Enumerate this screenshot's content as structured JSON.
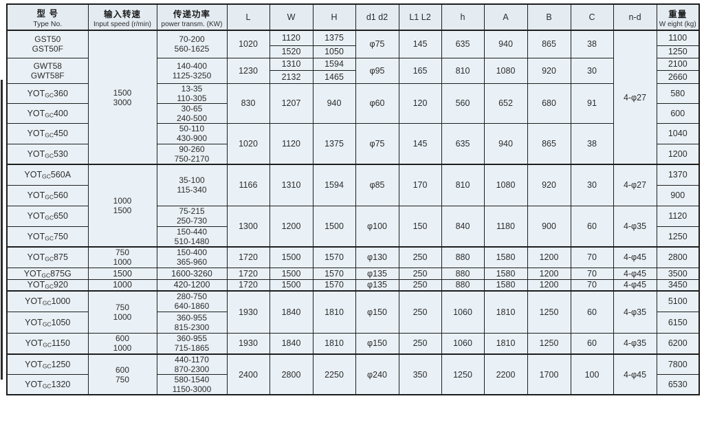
{
  "table": {
    "headers": [
      {
        "zh": "型 号",
        "en": "Type No."
      },
      {
        "zh": "输入转速",
        "en": "Input speed (r/min)"
      },
      {
        "zh": "传递功率",
        "en": "power transm. (KW)"
      },
      {
        "en": "L"
      },
      {
        "en": "W"
      },
      {
        "en": "H"
      },
      {
        "en": "d1 d2"
      },
      {
        "en": "L1 L2"
      },
      {
        "en": "h"
      },
      {
        "en": "A"
      },
      {
        "en": "B"
      },
      {
        "en": "C"
      },
      {
        "en": "n-d"
      },
      {
        "zh": "重量",
        "en": "W eight (kg)"
      }
    ],
    "rows": [
      {
        "cells": [
          {
            "c": 0,
            "rs": 2,
            "ln": [
              "GST50",
              "GST50F"
            ]
          },
          {
            "c": 1,
            "rs": 8,
            "ln": [
              "1500",
              "3000"
            ]
          },
          {
            "c": 2,
            "rs": 2,
            "ln": [
              "70-200",
              "560-1625"
            ]
          },
          {
            "c": 3,
            "rs": 2,
            "t": "1020"
          },
          {
            "c": 4,
            "t": "1120"
          },
          {
            "c": 5,
            "t": "1375"
          },
          {
            "c": 6,
            "rs": 2,
            "t": "φ75"
          },
          {
            "c": 7,
            "rs": 2,
            "t": "145"
          },
          {
            "c": 8,
            "rs": 2,
            "t": "635"
          },
          {
            "c": 9,
            "rs": 2,
            "t": "940"
          },
          {
            "c": 10,
            "rs": 2,
            "t": "865"
          },
          {
            "c": 11,
            "rs": 2,
            "t": "38"
          },
          {
            "c": 12,
            "rs": 8,
            "t": "4-φ27"
          },
          {
            "c": 13,
            "t": "1100"
          }
        ]
      },
      {
        "cells": [
          {
            "c": 4,
            "t": "1520"
          },
          {
            "c": 5,
            "t": "1050"
          },
          {
            "c": 13,
            "t": "1250"
          }
        ]
      },
      {
        "cells": [
          {
            "c": 0,
            "rs": 2,
            "ln": [
              "GWT58",
              "GWT58F"
            ]
          },
          {
            "c": 2,
            "rs": 2,
            "ln": [
              "140-400",
              "1125-3250"
            ]
          },
          {
            "c": 3,
            "rs": 2,
            "t": "1230"
          },
          {
            "c": 4,
            "t": "1310"
          },
          {
            "c": 5,
            "t": "1594"
          },
          {
            "c": 6,
            "rs": 2,
            "t": "φ95"
          },
          {
            "c": 7,
            "rs": 2,
            "t": "165"
          },
          {
            "c": 8,
            "rs": 2,
            "t": "810"
          },
          {
            "c": 9,
            "rs": 2,
            "t": "1080"
          },
          {
            "c": 10,
            "rs": 2,
            "t": "920"
          },
          {
            "c": 11,
            "rs": 2,
            "t": "30"
          },
          {
            "c": 13,
            "t": "2100"
          }
        ]
      },
      {
        "cells": [
          {
            "c": 4,
            "t": "2132"
          },
          {
            "c": 5,
            "t": "1465"
          },
          {
            "c": 13,
            "t": "2660"
          }
        ]
      },
      {
        "cells": [
          {
            "c": 0,
            "m": [
              "YOT",
              "GC",
              "360"
            ]
          },
          {
            "c": 2,
            "ln": [
              "13-35",
              "110-305"
            ]
          },
          {
            "c": 3,
            "rs": 2,
            "t": "830"
          },
          {
            "c": 4,
            "rs": 2,
            "t": "1207"
          },
          {
            "c": 5,
            "rs": 2,
            "t": "940"
          },
          {
            "c": 6,
            "rs": 2,
            "t": "φ60"
          },
          {
            "c": 7,
            "rs": 2,
            "t": "120"
          },
          {
            "c": 8,
            "rs": 2,
            "t": "560"
          },
          {
            "c": 9,
            "rs": 2,
            "t": "652"
          },
          {
            "c": 10,
            "rs": 2,
            "t": "680"
          },
          {
            "c": 11,
            "rs": 2,
            "t": "91"
          },
          {
            "c": 13,
            "t": "580"
          }
        ]
      },
      {
        "cells": [
          {
            "c": 0,
            "m": [
              "YOT",
              "GC",
              "400"
            ]
          },
          {
            "c": 2,
            "ln": [
              "30-65",
              "240-500"
            ]
          },
          {
            "c": 13,
            "t": "600"
          }
        ]
      },
      {
        "cells": [
          {
            "c": 0,
            "m": [
              "YOT",
              "GC",
              "450"
            ]
          },
          {
            "c": 2,
            "ln": [
              "50-110",
              "430-900"
            ]
          },
          {
            "c": 3,
            "rs": 2,
            "t": "1020"
          },
          {
            "c": 4,
            "rs": 2,
            "t": "1120"
          },
          {
            "c": 5,
            "rs": 2,
            "t": "1375"
          },
          {
            "c": 6,
            "rs": 2,
            "t": "φ75"
          },
          {
            "c": 7,
            "rs": 2,
            "t": "145"
          },
          {
            "c": 8,
            "rs": 2,
            "t": "635"
          },
          {
            "c": 9,
            "rs": 2,
            "t": "940"
          },
          {
            "c": 10,
            "rs": 2,
            "t": "865"
          },
          {
            "c": 11,
            "rs": 2,
            "t": "38"
          },
          {
            "c": 13,
            "t": "1040"
          }
        ]
      },
      {
        "cells": [
          {
            "c": 0,
            "m": [
              "YOT",
              "GC",
              "530"
            ]
          },
          {
            "c": 2,
            "ln": [
              "90-260",
              "750-2170"
            ]
          },
          {
            "c": 13,
            "t": "1200"
          }
        ]
      },
      {
        "cells": [
          {
            "c": 0,
            "m": [
              "YOT",
              "GC",
              "560A"
            ]
          },
          {
            "c": 1,
            "rs": 4,
            "ln": [
              "1000",
              "1500"
            ]
          },
          {
            "c": 2,
            "rs": 2,
            "ln": [
              "35-100",
              "115-340"
            ]
          },
          {
            "c": 3,
            "rs": 2,
            "t": "1166"
          },
          {
            "c": 4,
            "rs": 2,
            "t": "1310"
          },
          {
            "c": 5,
            "rs": 2,
            "t": "1594"
          },
          {
            "c": 6,
            "rs": 2,
            "t": "φ85"
          },
          {
            "c": 7,
            "rs": 2,
            "t": "170"
          },
          {
            "c": 8,
            "rs": 2,
            "t": "810"
          },
          {
            "c": 9,
            "rs": 2,
            "t": "1080"
          },
          {
            "c": 10,
            "rs": 2,
            "t": "920"
          },
          {
            "c": 11,
            "rs": 2,
            "t": "30"
          },
          {
            "c": 12,
            "rs": 2,
            "t": "4-φ27"
          },
          {
            "c": 13,
            "t": "1370"
          }
        ]
      },
      {
        "cells": [
          {
            "c": 0,
            "m": [
              "YOT",
              "GC",
              "560"
            ]
          },
          {
            "c": 13,
            "t": "900"
          }
        ]
      },
      {
        "cells": [
          {
            "c": 0,
            "m": [
              "YOT",
              "GC",
              "650"
            ]
          },
          {
            "c": 2,
            "ln": [
              "75-215",
              "250-730"
            ]
          },
          {
            "c": 3,
            "rs": 2,
            "t": "1300"
          },
          {
            "c": 4,
            "rs": 2,
            "t": "1200"
          },
          {
            "c": 5,
            "rs": 2,
            "t": "1500"
          },
          {
            "c": 6,
            "rs": 2,
            "t": "φ100"
          },
          {
            "c": 7,
            "rs": 2,
            "t": "150"
          },
          {
            "c": 8,
            "rs": 2,
            "t": "840"
          },
          {
            "c": 9,
            "rs": 2,
            "t": "1180"
          },
          {
            "c": 10,
            "rs": 2,
            "t": "900"
          },
          {
            "c": 11,
            "rs": 2,
            "t": "60"
          },
          {
            "c": 12,
            "rs": 2,
            "t": "4-φ35"
          },
          {
            "c": 13,
            "t": "1120"
          }
        ]
      },
      {
        "cells": [
          {
            "c": 0,
            "m": [
              "YOT",
              "GC",
              "750"
            ]
          },
          {
            "c": 2,
            "ln": [
              "150-440",
              "510-1480"
            ]
          },
          {
            "c": 13,
            "t": "1250"
          }
        ]
      },
      {
        "cells": [
          {
            "c": 0,
            "m": [
              "YOT",
              "GC",
              "875"
            ]
          },
          {
            "c": 1,
            "ln": [
              "750",
              "1000"
            ]
          },
          {
            "c": 2,
            "ln": [
              "150-400",
              "365-960"
            ]
          },
          {
            "c": 3,
            "t": "1720"
          },
          {
            "c": 4,
            "t": "1500"
          },
          {
            "c": 5,
            "t": "1570"
          },
          {
            "c": 6,
            "t": "φ130"
          },
          {
            "c": 7,
            "t": "250"
          },
          {
            "c": 8,
            "t": "880"
          },
          {
            "c": 9,
            "t": "1580"
          },
          {
            "c": 10,
            "t": "1200"
          },
          {
            "c": 11,
            "t": "70"
          },
          {
            "c": 12,
            "t": "4-φ45"
          },
          {
            "c": 13,
            "t": "2800"
          }
        ]
      },
      {
        "cells": [
          {
            "c": 0,
            "m": [
              "YOT",
              "GC",
              "875G"
            ]
          },
          {
            "c": 1,
            "t": "1500"
          },
          {
            "c": 2,
            "t": "1600-3260"
          },
          {
            "c": 3,
            "t": "1720"
          },
          {
            "c": 4,
            "t": "1500"
          },
          {
            "c": 5,
            "t": "1570"
          },
          {
            "c": 6,
            "t": "φ135"
          },
          {
            "c": 7,
            "t": "250"
          },
          {
            "c": 8,
            "t": "880"
          },
          {
            "c": 9,
            "t": "1580"
          },
          {
            "c": 10,
            "t": "1200"
          },
          {
            "c": 11,
            "t": "70"
          },
          {
            "c": 12,
            "t": "4-φ45"
          },
          {
            "c": 13,
            "t": "3500"
          }
        ]
      },
      {
        "cells": [
          {
            "c": 0,
            "m": [
              "YOT",
              "GC",
              "920"
            ]
          },
          {
            "c": 1,
            "t": "1000"
          },
          {
            "c": 2,
            "t": "420-1200"
          },
          {
            "c": 3,
            "t": "1720"
          },
          {
            "c": 4,
            "t": "1500"
          },
          {
            "c": 5,
            "t": "1570"
          },
          {
            "c": 6,
            "t": "φ135"
          },
          {
            "c": 7,
            "t": "250"
          },
          {
            "c": 8,
            "t": "880"
          },
          {
            "c": 9,
            "t": "1580"
          },
          {
            "c": 10,
            "t": "1200"
          },
          {
            "c": 11,
            "t": "70"
          },
          {
            "c": 12,
            "t": "4-φ45"
          },
          {
            "c": 13,
            "t": "3450"
          }
        ]
      },
      {
        "cells": [
          {
            "c": 0,
            "m": [
              "YOT",
              "GC",
              "1000"
            ]
          },
          {
            "c": 1,
            "rs": 2,
            "ln": [
              "750",
              "1000"
            ]
          },
          {
            "c": 2,
            "ln": [
              "280-750",
              "640-1860"
            ]
          },
          {
            "c": 3,
            "rs": 2,
            "t": "1930"
          },
          {
            "c": 4,
            "rs": 2,
            "t": "1840"
          },
          {
            "c": 5,
            "rs": 2,
            "t": "1810"
          },
          {
            "c": 6,
            "rs": 2,
            "t": "φ150"
          },
          {
            "c": 7,
            "rs": 2,
            "t": "250"
          },
          {
            "c": 8,
            "rs": 2,
            "t": "1060"
          },
          {
            "c": 9,
            "rs": 2,
            "t": "1810"
          },
          {
            "c": 10,
            "rs": 2,
            "t": "1250"
          },
          {
            "c": 11,
            "rs": 2,
            "t": "60"
          },
          {
            "c": 12,
            "rs": 2,
            "t": "4-φ35"
          },
          {
            "c": 13,
            "t": "5100"
          }
        ]
      },
      {
        "cells": [
          {
            "c": 0,
            "m": [
              "YOT",
              "GC",
              "1050"
            ]
          },
          {
            "c": 2,
            "ln": [
              "360-955",
              "815-2300"
            ]
          },
          {
            "c": 13,
            "t": "6150"
          }
        ]
      },
      {
        "cells": [
          {
            "c": 0,
            "m": [
              "YOT",
              "GC",
              "1150"
            ]
          },
          {
            "c": 1,
            "ln": [
              "600",
              "1000"
            ]
          },
          {
            "c": 2,
            "ln": [
              "360-955",
              "715-1865"
            ]
          },
          {
            "c": 3,
            "t": "1930"
          },
          {
            "c": 4,
            "t": "1840"
          },
          {
            "c": 5,
            "t": "1810"
          },
          {
            "c": 6,
            "t": "φ150"
          },
          {
            "c": 7,
            "t": "250"
          },
          {
            "c": 8,
            "t": "1060"
          },
          {
            "c": 9,
            "t": "1810"
          },
          {
            "c": 10,
            "t": "1250"
          },
          {
            "c": 11,
            "t": "60"
          },
          {
            "c": 12,
            "t": "4-φ35"
          },
          {
            "c": 13,
            "t": "6200"
          }
        ]
      },
      {
        "cells": [
          {
            "c": 0,
            "m": [
              "YOT",
              "GC",
              "1250"
            ]
          },
          {
            "c": 1,
            "rs": 2,
            "ln": [
              "600",
              "750"
            ]
          },
          {
            "c": 2,
            "ln": [
              "440-1170",
              "870-2300"
            ]
          },
          {
            "c": 3,
            "rs": 2,
            "t": "2400"
          },
          {
            "c": 4,
            "rs": 2,
            "t": "2800"
          },
          {
            "c": 5,
            "rs": 2,
            "t": "2250"
          },
          {
            "c": 6,
            "rs": 2,
            "t": "φ240"
          },
          {
            "c": 7,
            "rs": 2,
            "t": "350"
          },
          {
            "c": 8,
            "rs": 2,
            "t": "1250"
          },
          {
            "c": 9,
            "rs": 2,
            "t": "2200"
          },
          {
            "c": 10,
            "rs": 2,
            "t": "1700"
          },
          {
            "c": 11,
            "rs": 2,
            "t": "100"
          },
          {
            "c": 12,
            "rs": 2,
            "t": "4-φ45"
          },
          {
            "c": 13,
            "t": "7800"
          }
        ]
      },
      {
        "cells": [
          {
            "c": 0,
            "m": [
              "YOT",
              "GC",
              "1320"
            ]
          },
          {
            "c": 2,
            "ln": [
              "580-1540",
              "1150-3000"
            ]
          },
          {
            "c": 13,
            "t": "6530"
          }
        ]
      }
    ]
  }
}
